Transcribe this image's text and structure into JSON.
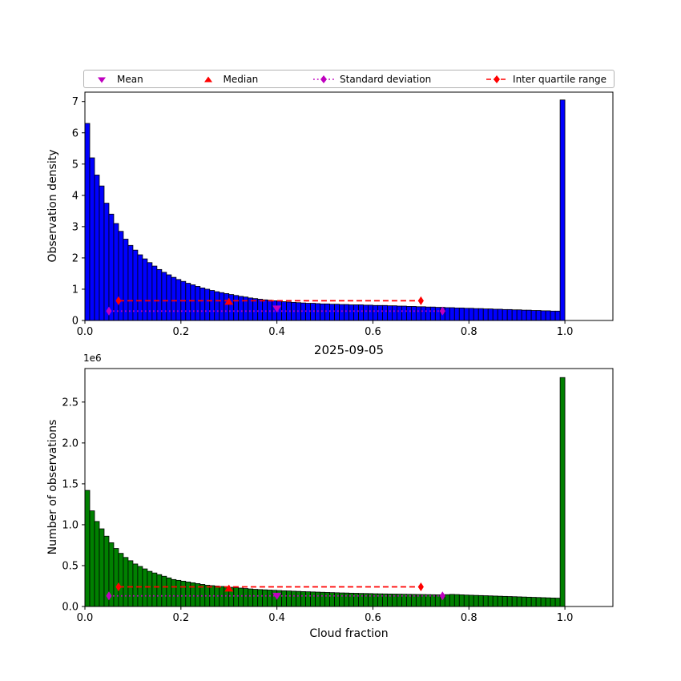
{
  "figure": {
    "title": "2025-09-05",
    "background": "#ffffff",
    "legend": {
      "items": [
        {
          "label": "Mean",
          "marker": "triangle-down",
          "color": "#bf00bf"
        },
        {
          "label": "Median",
          "marker": "triangle-up",
          "color": "#ff0000"
        },
        {
          "label": "Standard deviation",
          "marker": "diamond",
          "line": "dotted",
          "color": "#bf00bf"
        },
        {
          "label": "Inter quartile range",
          "marker": "diamond",
          "line": "dashed",
          "color": "#ff0000"
        }
      ]
    }
  },
  "chart_data": [
    {
      "name": "observation-density-histogram",
      "type": "bar",
      "title": "",
      "xlabel": "",
      "ylabel": "Observation density",
      "bar_color": "#0000ff",
      "edge_color": "#000000",
      "bin_start": 0,
      "bin_width": 0.01,
      "xlim": [
        0,
        1.1
      ],
      "ylim": [
        0,
        7.3
      ],
      "xtick_values": [
        0,
        0.2,
        0.4,
        0.6,
        0.8,
        1.0
      ],
      "xtick_labels": [
        "0.0",
        "0.2",
        "0.4",
        "0.6",
        "0.8",
        "1.0"
      ],
      "ytick_values": [
        0,
        1,
        2,
        3,
        4,
        5,
        6,
        7
      ],
      "ytick_labels": [
        "0",
        "1",
        "2",
        "3",
        "4",
        "5",
        "6",
        "7"
      ],
      "values": [
        6.3,
        5.2,
        4.65,
        4.3,
        3.75,
        3.4,
        3.1,
        2.85,
        2.6,
        2.4,
        2.25,
        2.1,
        1.97,
        1.85,
        1.74,
        1.63,
        1.54,
        1.46,
        1.38,
        1.31,
        1.25,
        1.19,
        1.14,
        1.09,
        1.04,
        1.0,
        0.96,
        0.92,
        0.89,
        0.86,
        0.83,
        0.8,
        0.77,
        0.75,
        0.72,
        0.7,
        0.68,
        0.66,
        0.65,
        0.63,
        0.62,
        0.6,
        0.59,
        0.58,
        0.57,
        0.56,
        0.55,
        0.55,
        0.54,
        0.53,
        0.53,
        0.52,
        0.52,
        0.51,
        0.51,
        0.5,
        0.5,
        0.5,
        0.49,
        0.49,
        0.48,
        0.48,
        0.48,
        0.47,
        0.47,
        0.46,
        0.46,
        0.45,
        0.45,
        0.44,
        0.44,
        0.43,
        0.43,
        0.42,
        0.42,
        0.41,
        0.41,
        0.4,
        0.4,
        0.39,
        0.39,
        0.38,
        0.38,
        0.37,
        0.37,
        0.36,
        0.36,
        0.35,
        0.35,
        0.34,
        0.34,
        0.33,
        0.33,
        0.32,
        0.32,
        0.31,
        0.31,
        0.3,
        0.3,
        7.05
      ],
      "stats": [
        {
          "name": "mean",
          "marker": "triangle-down",
          "color": "#bf00bf",
          "x": 0.4,
          "y": 0.38
        },
        {
          "name": "median",
          "marker": "triangle-up",
          "color": "#ff0000",
          "x": 0.3,
          "y": 0.6
        },
        {
          "name": "standard-deviation",
          "marker": "diamond",
          "color": "#bf00bf",
          "line": "dotted",
          "x1": 0.05,
          "x2": 0.745,
          "y": 0.3
        },
        {
          "name": "inter-quartile-range",
          "marker": "diamond",
          "color": "#ff0000",
          "line": "dashed",
          "x1": 0.07,
          "x2": 0.7,
          "y": 0.63
        }
      ]
    },
    {
      "name": "observation-count-histogram",
      "type": "bar",
      "title": "2025-09-05",
      "xlabel": "Cloud fraction",
      "ylabel": "Number of observations",
      "y_offset_label": "1e6",
      "y_unit": 1000000,
      "bar_color": "#008000",
      "edge_color": "#000000",
      "bin_start": 0,
      "bin_width": 0.01,
      "xlim": [
        0,
        1.1
      ],
      "ylim": [
        0,
        2.91
      ],
      "xtick_values": [
        0,
        0.2,
        0.4,
        0.6,
        0.8,
        1.0
      ],
      "xtick_labels": [
        "0.0",
        "0.2",
        "0.4",
        "0.6",
        "0.8",
        "1.0"
      ],
      "ytick_values": [
        0,
        0.5,
        1.0,
        1.5,
        2.0,
        2.5
      ],
      "ytick_labels": [
        "0.0",
        "0.5",
        "1.0",
        "1.5",
        "2.0",
        "2.5"
      ],
      "values": [
        1.42,
        1.17,
        1.04,
        0.95,
        0.86,
        0.78,
        0.71,
        0.65,
        0.6,
        0.56,
        0.52,
        0.49,
        0.46,
        0.43,
        0.41,
        0.39,
        0.37,
        0.35,
        0.33,
        0.32,
        0.31,
        0.3,
        0.29,
        0.28,
        0.27,
        0.26,
        0.255,
        0.25,
        0.245,
        0.24,
        0.235,
        0.23,
        0.225,
        0.22,
        0.215,
        0.21,
        0.207,
        0.204,
        0.201,
        0.198,
        0.195,
        0.192,
        0.19,
        0.187,
        0.185,
        0.182,
        0.18,
        0.178,
        0.176,
        0.174,
        0.172,
        0.17,
        0.168,
        0.166,
        0.165,
        0.163,
        0.162,
        0.16,
        0.159,
        0.158,
        0.156,
        0.155,
        0.154,
        0.153,
        0.152,
        0.151,
        0.15,
        0.149,
        0.148,
        0.147,
        0.146,
        0.145,
        0.144,
        0.143,
        0.142,
        0.145,
        0.148,
        0.146,
        0.143,
        0.14,
        0.138,
        0.136,
        0.134,
        0.132,
        0.13,
        0.128,
        0.126,
        0.124,
        0.122,
        0.12,
        0.118,
        0.116,
        0.114,
        0.112,
        0.11,
        0.108,
        0.106,
        0.104,
        0.102,
        2.8
      ],
      "stats": [
        {
          "name": "mean",
          "marker": "triangle-down",
          "color": "#bf00bf",
          "x": 0.4,
          "y": 0.13
        },
        {
          "name": "median",
          "marker": "triangle-up",
          "color": "#ff0000",
          "x": 0.3,
          "y": 0.22
        },
        {
          "name": "standard-deviation",
          "marker": "diamond",
          "color": "#bf00bf",
          "line": "dotted",
          "x1": 0.05,
          "x2": 0.745,
          "y": 0.13
        },
        {
          "name": "inter-quartile-range",
          "marker": "diamond",
          "color": "#ff0000",
          "line": "dashed",
          "x1": 0.07,
          "x2": 0.7,
          "y": 0.24
        }
      ]
    }
  ]
}
